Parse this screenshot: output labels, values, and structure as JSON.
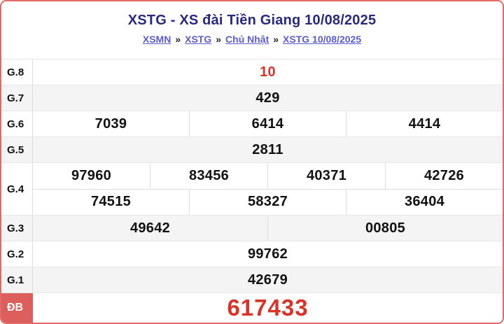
{
  "header": {
    "title": "XSTG - XS đài Tiền Giang 10/08/2025",
    "breadcrumb_separator": "»",
    "breadcrumb": [
      {
        "label": "XSMN"
      },
      {
        "label": "XSTG"
      },
      {
        "label": "Chủ Nhật"
      },
      {
        "label": "XSTG 10/08/2025"
      }
    ]
  },
  "colors": {
    "card_border": "#e06a66",
    "db_label_bg": "#dd5f5c",
    "highlight_number": "#d93327",
    "title": "#29297f",
    "link": "#5b5bd2",
    "shaded_row": "#f4f4f4"
  },
  "results_table": {
    "rows": [
      {
        "id": "g8",
        "label": "G.8",
        "groups": [
          [
            "10"
          ]
        ],
        "shade": false,
        "red": true,
        "big": false,
        "label_red": false
      },
      {
        "id": "g7",
        "label": "G.7",
        "groups": [
          [
            "429"
          ]
        ],
        "shade": true,
        "red": false,
        "big": false,
        "label_red": false
      },
      {
        "id": "g6",
        "label": "G.6",
        "groups": [
          [
            "7039",
            "6414",
            "4414"
          ]
        ],
        "shade": false,
        "red": false,
        "big": false,
        "label_red": false
      },
      {
        "id": "g5",
        "label": "G.5",
        "groups": [
          [
            "2811"
          ]
        ],
        "shade": true,
        "red": false,
        "big": false,
        "label_red": false
      },
      {
        "id": "g4",
        "label": "G.4",
        "groups": [
          [
            "97960",
            "83456",
            "40371",
            "42726"
          ],
          [
            "74515",
            "58327",
            "36404"
          ]
        ],
        "shade": false,
        "red": false,
        "big": false,
        "label_red": false
      },
      {
        "id": "g3",
        "label": "G.3",
        "groups": [
          [
            "49642",
            "00805"
          ]
        ],
        "shade": true,
        "red": false,
        "big": false,
        "label_red": false
      },
      {
        "id": "g2",
        "label": "G.2",
        "groups": [
          [
            "99762"
          ]
        ],
        "shade": false,
        "red": false,
        "big": false,
        "label_red": false
      },
      {
        "id": "g1",
        "label": "G.1",
        "groups": [
          [
            "42679"
          ]
        ],
        "shade": true,
        "red": false,
        "big": false,
        "label_red": false
      },
      {
        "id": "db",
        "label": "ĐB",
        "groups": [
          [
            "617433"
          ]
        ],
        "shade": false,
        "red": true,
        "big": true,
        "label_red": true
      }
    ]
  }
}
